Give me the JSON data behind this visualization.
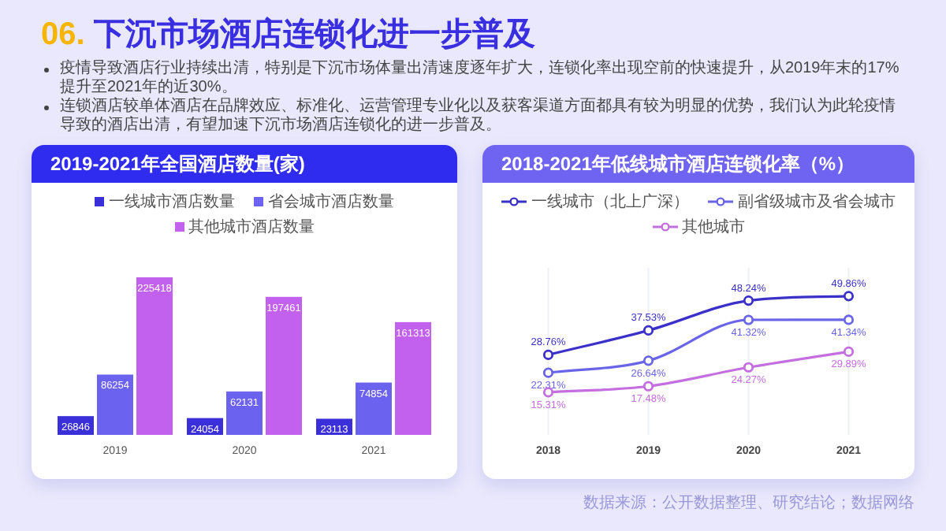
{
  "chart_data": [
    {
      "type": "other",
      "title": "06. 下沉市场酒店连锁化进一步普及",
      "annotations": [
        "疫情导致酒店行业持续出清，特别是下沉市场体量出清速度逐年扩大，连锁化率出现空前的快速提升，从2019年末的17%提升至2021年的近30%。",
        "连锁酒店较单体酒店在品牌效应、标准化、运营管理专业化以及获客渠道方面都具有较为明显的优势，我们认为此轮疫情导致的酒店出清，有望加速下沉市场酒店连锁化的进一步普及。"
      ]
    },
    {
      "type": "bar",
      "title": "2019-2021年全国酒店数量(家)",
      "categories": [
        "2019",
        "2020",
        "2021"
      ],
      "series": [
        {
          "name": "一线城市酒店数量",
          "color": "#3a2fd8",
          "values": [
            26846,
            24054,
            23113
          ]
        },
        {
          "name": "省会城市酒店数量",
          "color": "#6b62f0",
          "values": [
            86254,
            62131,
            74854
          ]
        },
        {
          "name": "其他城市酒店数量",
          "color": "#c261ee",
          "values": [
            225418,
            197461,
            161313
          ]
        }
      ],
      "tick_labels": "x",
      "data_labels": true,
      "legend": "top",
      "grid": false
    },
    {
      "type": "line",
      "title": "2018-2021年低线城市酒店连锁化率（%）",
      "categories": [
        "2018",
        "2019",
        "2020",
        "2021"
      ],
      "series": [
        {
          "name": "一线城市（北上广深）",
          "color": "#3b30c8",
          "values": [
            28.76,
            37.53,
            48.24,
            49.86
          ],
          "value_labels": [
            "28.76%",
            "37.53%",
            "48.24%",
            "49.86%"
          ]
        },
        {
          "name": "副省级城市及省会城市",
          "color": "#6a64e8",
          "values": [
            22.31,
            26.64,
            41.32,
            41.34
          ],
          "value_labels": [
            "22.31%",
            "26.64%",
            "41.32%",
            "41.34%"
          ]
        },
        {
          "name": "其他城市",
          "color": "#c46ee0",
          "values": [
            15.31,
            17.48,
            24.27,
            29.89
          ],
          "value_labels": [
            "15.31%",
            "17.48%",
            "24.27%",
            "29.89%"
          ]
        }
      ],
      "ylim": [
        0,
        60
      ],
      "tick_labels": "x",
      "grid": "x",
      "marker": "circle",
      "line_style": "solid",
      "legend": "top",
      "annotations": [
        "数据来源：公开数据整理、研究结论；数据网络"
      ]
    }
  ]
}
